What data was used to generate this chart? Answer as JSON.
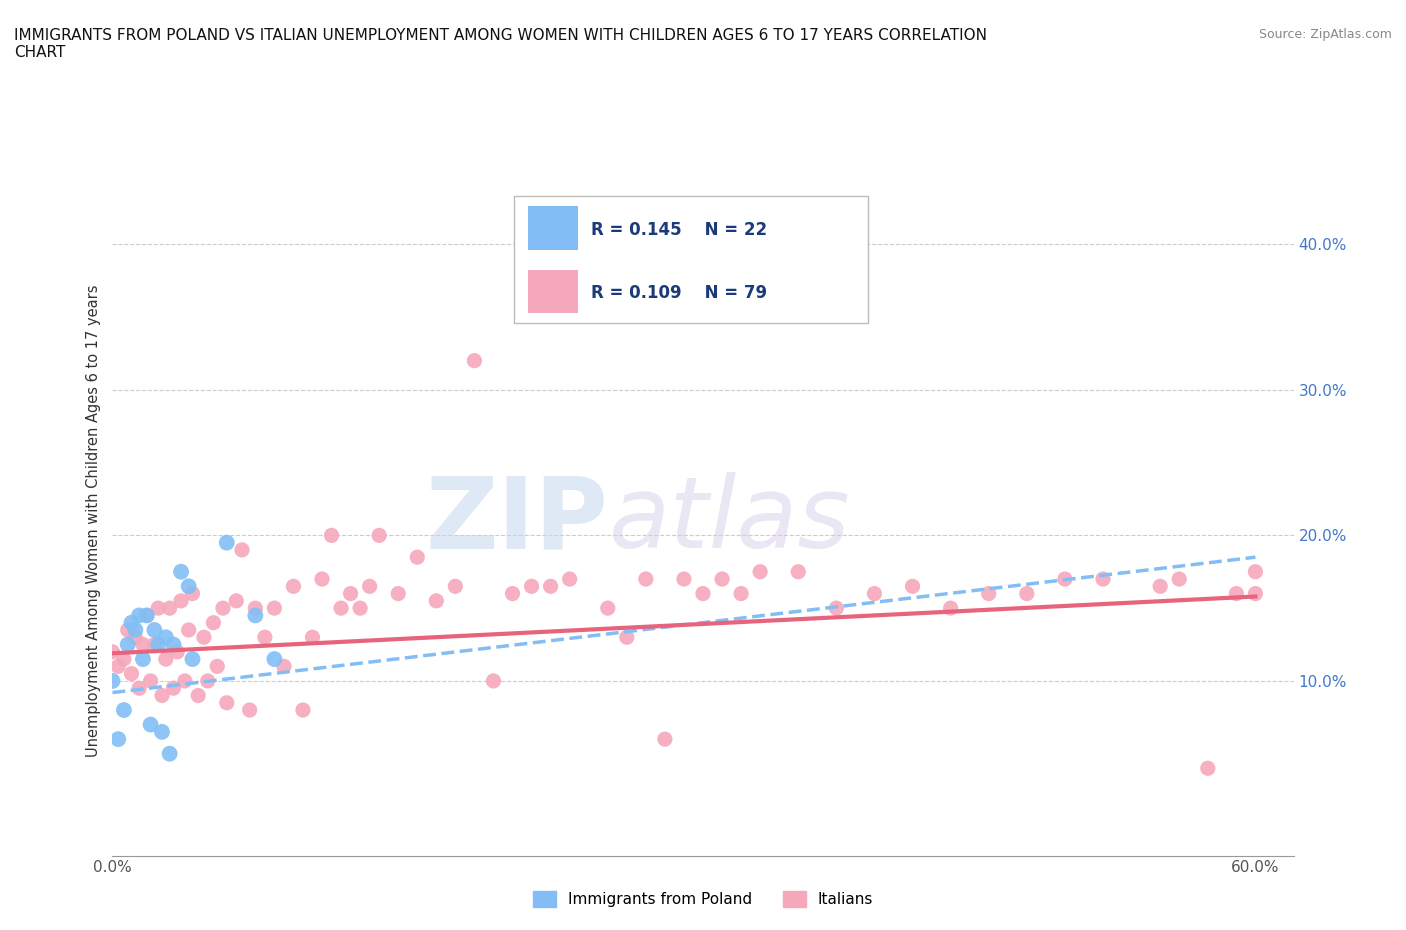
{
  "title": "IMMIGRANTS FROM POLAND VS ITALIAN UNEMPLOYMENT AMONG WOMEN WITH CHILDREN AGES 6 TO 17 YEARS CORRELATION\nCHART",
  "source": "Source: ZipAtlas.com",
  "ylabel": "Unemployment Among Women with Children Ages 6 to 17 years",
  "xlim": [
    0.0,
    0.62
  ],
  "ylim": [
    -0.02,
    0.44
  ],
  "xticks": [
    0.0,
    0.1,
    0.2,
    0.3,
    0.4,
    0.5,
    0.6
  ],
  "xticklabels": [
    "0.0%",
    "",
    "",
    "",
    "",
    "",
    "60.0%"
  ],
  "yticks": [
    0.1,
    0.2,
    0.3,
    0.4
  ],
  "yticklabels": [
    "10.0%",
    "20.0%",
    "30.0%",
    "40.0%"
  ],
  "grid_yticks": [
    0.1,
    0.2,
    0.3,
    0.4
  ],
  "r_poland": 0.145,
  "n_poland": 22,
  "r_italian": 0.109,
  "n_italian": 79,
  "color_poland": "#82bef5",
  "color_italian": "#f5a8bc",
  "watermark_zip": "ZIP",
  "watermark_atlas": "atlas",
  "poland_x": [
    0.0,
    0.003,
    0.006,
    0.008,
    0.01,
    0.012,
    0.014,
    0.016,
    0.018,
    0.02,
    0.022,
    0.024,
    0.026,
    0.028,
    0.03,
    0.032,
    0.036,
    0.04,
    0.042,
    0.06,
    0.075,
    0.085
  ],
  "poland_y": [
    0.1,
    0.06,
    0.08,
    0.125,
    0.14,
    0.135,
    0.145,
    0.115,
    0.145,
    0.07,
    0.135,
    0.125,
    0.065,
    0.13,
    0.05,
    0.125,
    0.175,
    0.165,
    0.115,
    0.195,
    0.145,
    0.115
  ],
  "trendline_poland_x0": 0.0,
  "trendline_poland_y0": 0.092,
  "trendline_poland_x1": 0.6,
  "trendline_poland_y1": 0.185,
  "trendline_italian_x0": 0.0,
  "trendline_italian_y0": 0.119,
  "trendline_italian_x1": 0.6,
  "trendline_italian_y1": 0.158,
  "italian_x": [
    0.0,
    0.003,
    0.006,
    0.008,
    0.01,
    0.012,
    0.014,
    0.016,
    0.018,
    0.02,
    0.022,
    0.024,
    0.026,
    0.028,
    0.03,
    0.032,
    0.034,
    0.036,
    0.038,
    0.04,
    0.042,
    0.045,
    0.048,
    0.05,
    0.053,
    0.055,
    0.058,
    0.06,
    0.065,
    0.068,
    0.072,
    0.075,
    0.08,
    0.085,
    0.09,
    0.095,
    0.1,
    0.105,
    0.11,
    0.115,
    0.12,
    0.125,
    0.13,
    0.135,
    0.14,
    0.15,
    0.16,
    0.17,
    0.18,
    0.19,
    0.2,
    0.21,
    0.22,
    0.23,
    0.24,
    0.26,
    0.27,
    0.28,
    0.29,
    0.3,
    0.31,
    0.32,
    0.33,
    0.34,
    0.36,
    0.38,
    0.4,
    0.42,
    0.44,
    0.46,
    0.48,
    0.5,
    0.52,
    0.55,
    0.56,
    0.575,
    0.59,
    0.6,
    0.6
  ],
  "italian_y": [
    0.12,
    0.11,
    0.115,
    0.135,
    0.105,
    0.13,
    0.095,
    0.125,
    0.145,
    0.1,
    0.125,
    0.15,
    0.09,
    0.115,
    0.15,
    0.095,
    0.12,
    0.155,
    0.1,
    0.135,
    0.16,
    0.09,
    0.13,
    0.1,
    0.14,
    0.11,
    0.15,
    0.085,
    0.155,
    0.19,
    0.08,
    0.15,
    0.13,
    0.15,
    0.11,
    0.165,
    0.08,
    0.13,
    0.17,
    0.2,
    0.15,
    0.16,
    0.15,
    0.165,
    0.2,
    0.16,
    0.185,
    0.155,
    0.165,
    0.32,
    0.1,
    0.16,
    0.165,
    0.165,
    0.17,
    0.15,
    0.13,
    0.17,
    0.06,
    0.17,
    0.16,
    0.17,
    0.16,
    0.175,
    0.175,
    0.15,
    0.16,
    0.165,
    0.15,
    0.16,
    0.16,
    0.17,
    0.17,
    0.165,
    0.17,
    0.04,
    0.16,
    0.175,
    0.16
  ]
}
